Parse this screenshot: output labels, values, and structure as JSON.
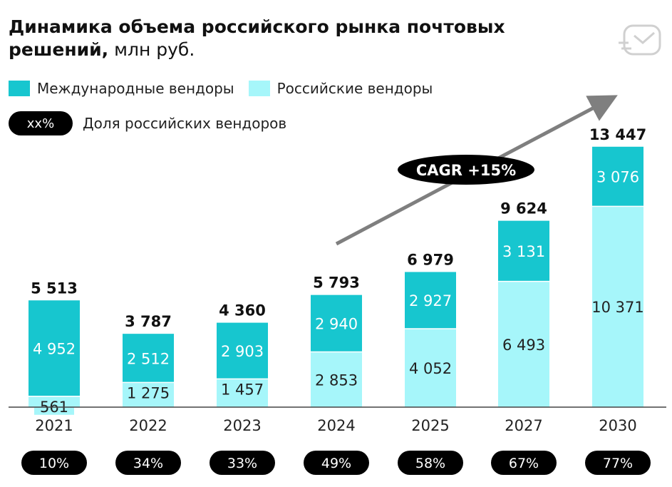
{
  "title": {
    "bold": "Динамика объема российского рынка почтовых",
    "bold2": "решений,",
    "unit": " млн руб."
  },
  "legend": {
    "international": "Международные вендоры",
    "russian": "Российские вендоры",
    "share_badge": "xx%",
    "share_label": "Доля российских вендоров"
  },
  "cagr_label": "CAGR +15%",
  "icon": "mail-icon",
  "colors": {
    "international": "#17c6cf",
    "russian": "#a6f6fa",
    "arrow": "#7f7f7f",
    "pill": "#000000"
  },
  "chart_data": {
    "type": "bar",
    "stacked": true,
    "categories": [
      "2021",
      "2022",
      "2023",
      "2024",
      "2025",
      "2027",
      "2030"
    ],
    "series": [
      {
        "name": "Российские вендоры",
        "values": [
          561,
          1275,
          1457,
          2853,
          4052,
          6493,
          10371
        ],
        "labels": [
          "561",
          "1 275",
          "1 457",
          "2 853",
          "4 052",
          "6 493",
          "10 371"
        ]
      },
      {
        "name": "Международные вендоры",
        "values": [
          4952,
          2512,
          2903,
          2940,
          2927,
          3131,
          3076
        ],
        "labels": [
          "4 952",
          "2 512",
          "2 903",
          "2 940",
          "2 927",
          "3 131",
          "3 076"
        ]
      }
    ],
    "totals": [
      "5 513",
      "3 787",
      "4 360",
      "5 793",
      "6 979",
      "9 624",
      "13 447"
    ],
    "russian_share": [
      "10%",
      "34%",
      "33%",
      "49%",
      "58%",
      "67%",
      "77%"
    ],
    "unit": "млн руб."
  }
}
